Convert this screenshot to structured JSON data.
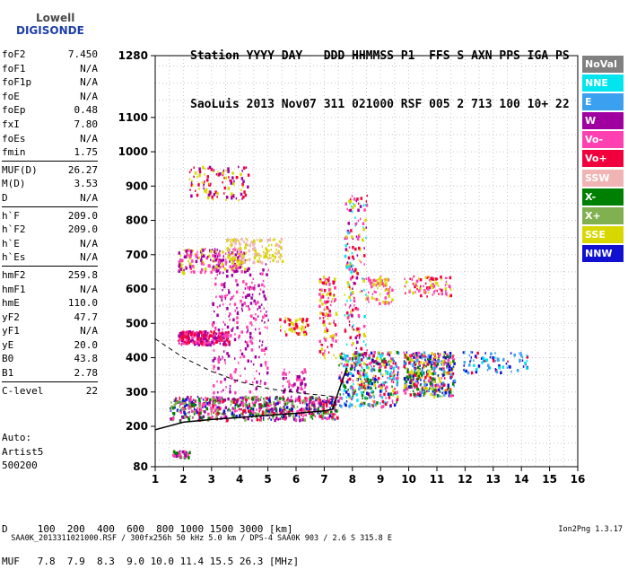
{
  "logo": {
    "line1": "Lowell",
    "line2": "DIGISONDE"
  },
  "header": {
    "labels": "Station YYYY DAY   DDD HHMMSS P1  FFS S AXN PPS IGA PS",
    "values": "SaoLuis 2013 Nov07 311 021000 RSF 005 2 713 100 10+ 22"
  },
  "params": [
    {
      "k": "foF2",
      "v": "7.450"
    },
    {
      "k": "foF1",
      "v": "N/A"
    },
    {
      "k": "foF1p",
      "v": "N/A"
    },
    {
      "k": "foE",
      "v": "N/A"
    },
    {
      "k": "foEp",
      "v": "0.48"
    },
    {
      "k": "fxI",
      "v": "7.80"
    },
    {
      "k": "foEs",
      "v": "N/A"
    },
    {
      "k": "fmin",
      "v": "1.75"
    },
    {
      "k": "MUF(D)",
      "v": "26.27"
    },
    {
      "k": "M(D)",
      "v": "3.53"
    },
    {
      "k": "D",
      "v": "N/A"
    },
    {
      "k": "h`F",
      "v": "209.0"
    },
    {
      "k": "h`F2",
      "v": "209.0"
    },
    {
      "k": "h`E",
      "v": "N/A"
    },
    {
      "k": "h`Es",
      "v": "N/A"
    },
    {
      "k": "hmF2",
      "v": "259.8"
    },
    {
      "k": "hmF1",
      "v": "N/A"
    },
    {
      "k": "hmE",
      "v": "110.0"
    },
    {
      "k": "yF2",
      "v": "47.7"
    },
    {
      "k": "yF1",
      "v": "N/A"
    },
    {
      "k": "yE",
      "v": "20.0"
    },
    {
      "k": "B0",
      "v": "43.8"
    },
    {
      "k": "B1",
      "v": "2.78"
    },
    {
      "k": "C-level",
      "v": "22"
    }
  ],
  "auto": {
    "l1": "Auto:",
    "l2": "Artist5",
    "l3": "500200"
  },
  "table": {
    "row1": "D     100  200  400  600  800 1000 1500 3000 [km]",
    "row2": "MUF   7.8  7.9  8.3  9.0 10.0 11.4 15.5 26.3 [MHz]"
  },
  "footer": {
    "left": "SAA0K_2013311021000.RSF / 300fx256h 50 kHz 5.0 km / DPS-4 SAA0K 903 / 2.6 S 315.8 E",
    "right": "Ion2Png 1.3.17"
  },
  "legend": [
    {
      "label": "NoVal",
      "color": "#808080"
    },
    {
      "label": "NNE",
      "color": "#00e5ee"
    },
    {
      "label": "E",
      "color": "#3ca0f0"
    },
    {
      "label": "W",
      "color": "#a000a0"
    },
    {
      "label": "Vo-",
      "color": "#ff40b0"
    },
    {
      "label": "Vo+",
      "color": "#f0003c"
    },
    {
      "label": "SSW",
      "color": "#f0b4b4"
    },
    {
      "label": "X-",
      "color": "#008000"
    },
    {
      "label": "X+",
      "color": "#80b050"
    },
    {
      "label": "SSE",
      "color": "#d8d800"
    },
    {
      "label": "NNW",
      "color": "#1010d0"
    }
  ],
  "chart_data": {
    "type": "scatter",
    "xlim": [
      1,
      16
    ],
    "ylim": [
      80,
      1280
    ],
    "x_ticks": [
      1,
      2,
      3,
      4,
      5,
      6,
      7,
      8,
      9,
      10,
      11,
      12,
      13,
      14,
      15,
      16
    ],
    "y_ticks": [
      80,
      200,
      300,
      400,
      500,
      600,
      700,
      800,
      900,
      1000,
      1100,
      1280
    ],
    "grid": true,
    "profile_line": [
      [
        1,
        190
      ],
      [
        2,
        212
      ],
      [
        3,
        220
      ],
      [
        4,
        226
      ],
      [
        5,
        232
      ],
      [
        6,
        238
      ],
      [
        7,
        245
      ],
      [
        7.3,
        250
      ],
      [
        7.5,
        300
      ],
      [
        7.8,
        370
      ]
    ],
    "dashed_line": [
      [
        1,
        455
      ],
      [
        2,
        400
      ],
      [
        3,
        360
      ],
      [
        4,
        330
      ],
      [
        5,
        310
      ],
      [
        6,
        298
      ],
      [
        7,
        290
      ],
      [
        7.5,
        285
      ]
    ],
    "clusters": [
      {
        "x": [
          1.5,
          7.5
        ],
        "y": [
          220,
          290
        ],
        "n": 700,
        "colors": [
          "#f0003c",
          "#008000",
          "#1010d0",
          "#ff40b0",
          "#a000a0",
          "#80b050"
        ]
      },
      {
        "x": [
          1.8,
          3.6
        ],
        "y": [
          440,
          480
        ],
        "n": 260,
        "colors": [
          "#f0003c",
          "#ff40b0",
          "#a000a0"
        ]
      },
      {
        "x": [
          3.0,
          5.0
        ],
        "y": [
          300,
          680
        ],
        "n": 260,
        "colors": [
          "#a000a0",
          "#ff40b0"
        ]
      },
      {
        "x": [
          1.8,
          4.2
        ],
        "y": [
          650,
          720
        ],
        "n": 220,
        "colors": [
          "#a000a0",
          "#ff40b0",
          "#d8d800"
        ]
      },
      {
        "x": [
          3.5,
          5.5
        ],
        "y": [
          680,
          750
        ],
        "n": 140,
        "colors": [
          "#d8d800",
          "#f0b4b4"
        ]
      },
      {
        "x": [
          2.2,
          4.3
        ],
        "y": [
          860,
          960
        ],
        "n": 110,
        "colors": [
          "#d8d800",
          "#f0003c",
          "#a000a0"
        ]
      },
      {
        "x": [
          7.5,
          9.6
        ],
        "y": [
          260,
          420
        ],
        "n": 420,
        "colors": [
          "#1010d0",
          "#f0003c",
          "#ff40b0",
          "#008000",
          "#d8d800",
          "#00e5ee",
          "#3ca0f0"
        ]
      },
      {
        "x": [
          9.8,
          11.6
        ],
        "y": [
          290,
          420
        ],
        "n": 420,
        "colors": [
          "#d8d800",
          "#f0003c",
          "#1010d0",
          "#ff40b0",
          "#3ca0f0",
          "#008000"
        ]
      },
      {
        "x": [
          6.8,
          7.4
        ],
        "y": [
          400,
          640
        ],
        "n": 120,
        "colors": [
          "#f0003c",
          "#ff40b0",
          "#d8d800"
        ]
      },
      {
        "x": [
          7.7,
          8.5
        ],
        "y": [
          350,
          880
        ],
        "n": 200,
        "colors": [
          "#a000a0",
          "#ff40b0",
          "#d8d800",
          "#00e5ee",
          "#f0003c"
        ]
      },
      {
        "x": [
          8.5,
          9.4
        ],
        "y": [
          560,
          640
        ],
        "n": 80,
        "colors": [
          "#d8d800",
          "#ff40b0"
        ]
      },
      {
        "x": [
          9.8,
          11.5
        ],
        "y": [
          580,
          640
        ],
        "n": 90,
        "colors": [
          "#f0003c",
          "#ff40b0",
          "#d8d800"
        ]
      },
      {
        "x": [
          11.9,
          14.2
        ],
        "y": [
          360,
          420
        ],
        "n": 80,
        "colors": [
          "#1010d0",
          "#00e5ee",
          "#f0003c",
          "#3ca0f0"
        ]
      },
      {
        "x": [
          1.6,
          2.2
        ],
        "y": [
          110,
          130
        ],
        "n": 40,
        "colors": [
          "#a000a0",
          "#008000",
          "#ff40b0"
        ]
      },
      {
        "x": [
          5.4,
          6.4
        ],
        "y": [
          470,
          520
        ],
        "n": 60,
        "colors": [
          "#d8d800",
          "#f0003c"
        ]
      },
      {
        "x": [
          5.5,
          6.3
        ],
        "y": [
          300,
          370
        ],
        "n": 50,
        "colors": [
          "#a000a0",
          "#ff40b0"
        ]
      }
    ]
  }
}
